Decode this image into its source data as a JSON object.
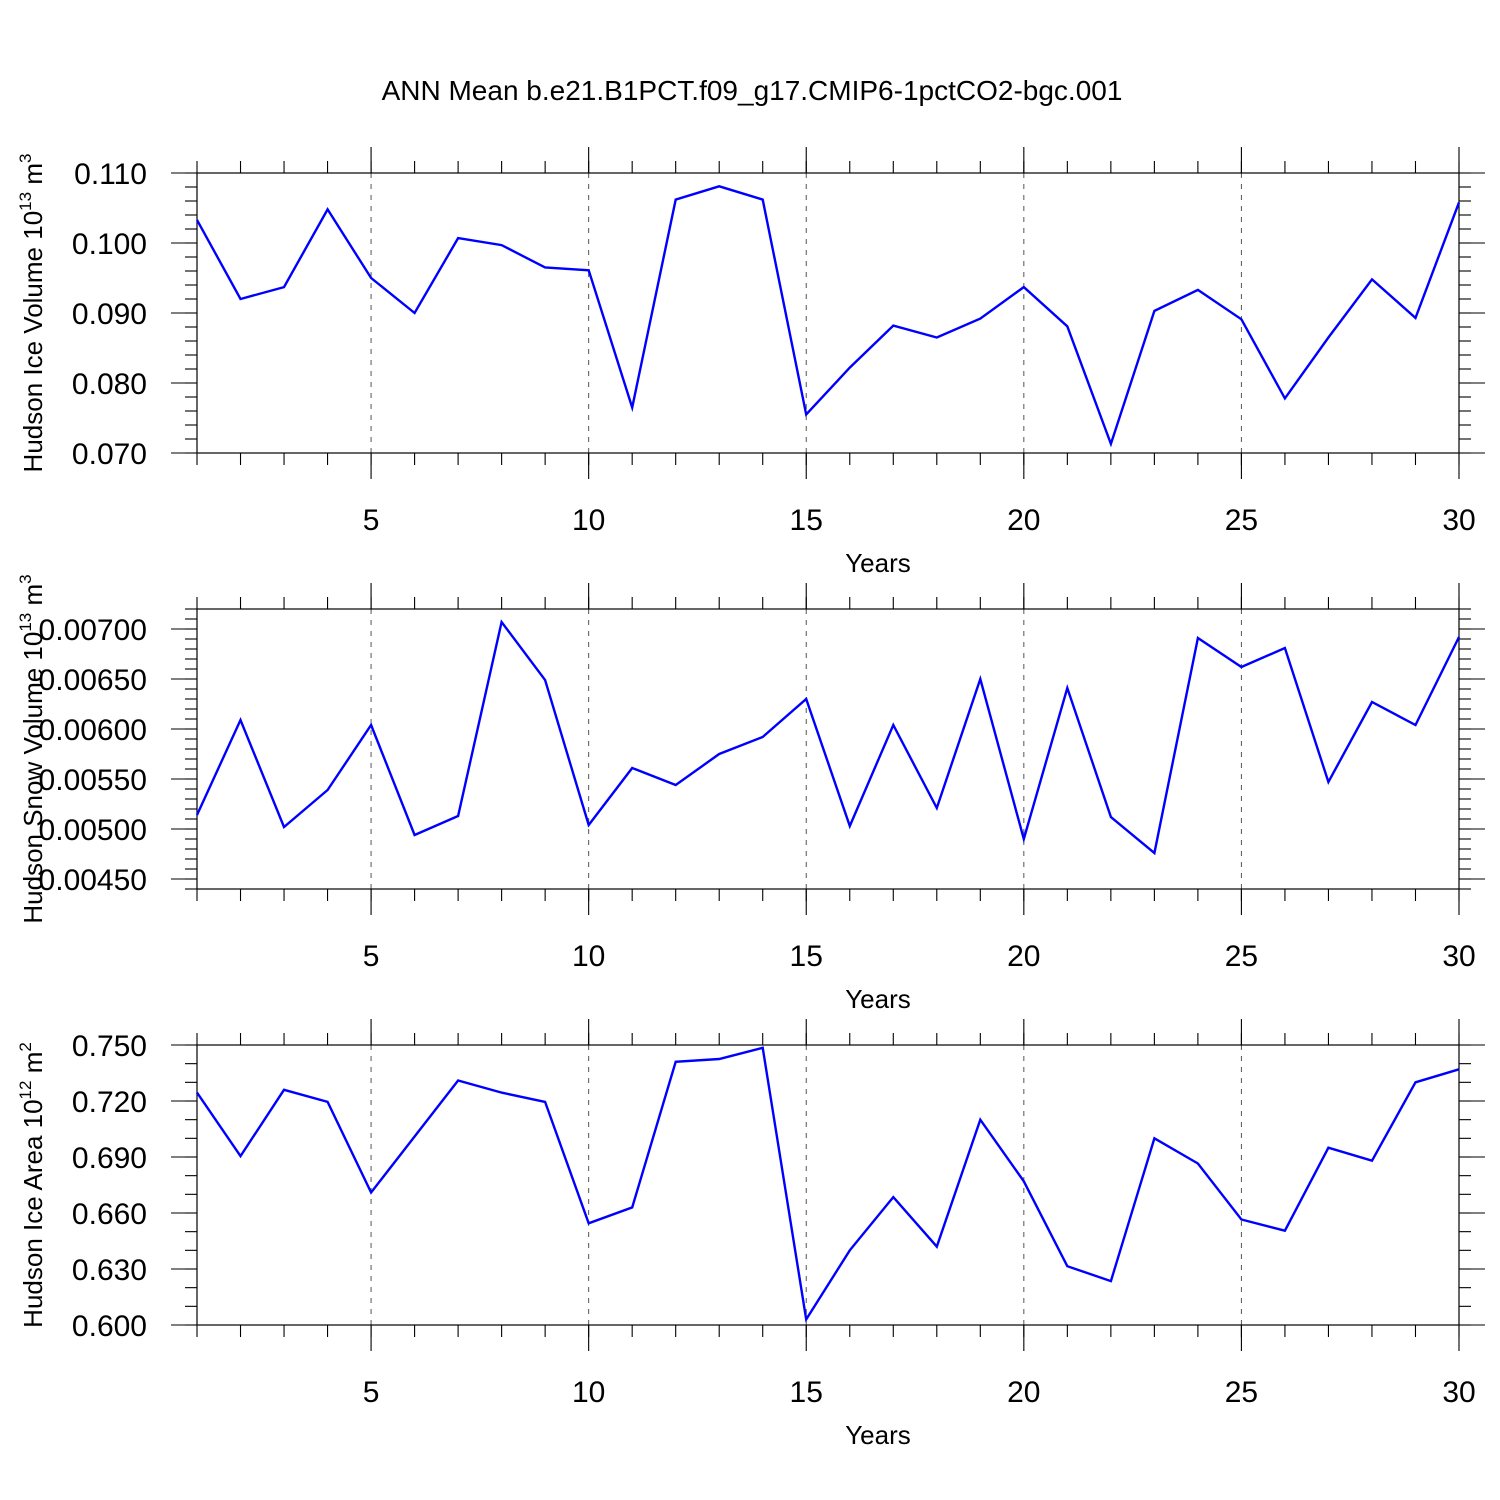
{
  "title": "ANN Mean b.e21.B1PCT.f09_g17.CMIP6-1pctCO2-bgc.001",
  "chart_data": [
    {
      "type": "line",
      "ylabel": "Hudson Ice Volume 10",
      "ylabel_sup": "13",
      "ylabel_unit": " m",
      "ylabel_unit_sup": "3",
      "xlabel": "Years",
      "xlim": [
        1,
        30
      ],
      "ylim": [
        0.07,
        0.11
      ],
      "x_ticks": [
        5,
        10,
        15,
        20,
        25,
        30
      ],
      "y_ticks": [
        "0.070",
        "0.080",
        "0.090",
        "0.100",
        "0.110"
      ],
      "y_tick_values": [
        0.07,
        0.08,
        0.09,
        0.1,
        0.11
      ],
      "y_minor_step": 0.002,
      "grid": "vertical dashed at major x ticks",
      "x": [
        1,
        2,
        3,
        4,
        5,
        6,
        7,
        8,
        9,
        10,
        11,
        12,
        13,
        14,
        15,
        16,
        17,
        18,
        19,
        20,
        21,
        22,
        23,
        24,
        25,
        26,
        27,
        28,
        29,
        30
      ],
      "values": [
        0.1033,
        0.092,
        0.0937,
        0.1048,
        0.095,
        0.09,
        0.1007,
        0.0997,
        0.0965,
        0.0961,
        0.0765,
        0.1062,
        0.1081,
        0.1062,
        0.0755,
        0.0822,
        0.0882,
        0.0865,
        0.0892,
        0.0937,
        0.0881,
        0.0713,
        0.0903,
        0.0933,
        0.0891,
        0.0778,
        0.0865,
        0.0948,
        0.0893,
        0.1058
      ],
      "color": "#0000ff"
    },
    {
      "type": "line",
      "ylabel": "Hudson Snow Volume 10",
      "ylabel_sup": "13",
      "ylabel_unit": " m",
      "ylabel_unit_sup": "3",
      "xlabel": "Years",
      "xlim": [
        1,
        30
      ],
      "ylim": [
        0.0044,
        0.0072
      ],
      "x_ticks": [
        5,
        10,
        15,
        20,
        25,
        30
      ],
      "y_ticks": [
        "0.00450",
        "0.00500",
        "0.00550",
        "0.00600",
        "0.00650",
        "0.00700"
      ],
      "y_tick_values": [
        0.0045,
        0.005,
        0.0055,
        0.006,
        0.0065,
        0.007
      ],
      "y_minor_step": 0.0001,
      "grid": "vertical dashed at major x ticks",
      "x": [
        1,
        2,
        3,
        4,
        5,
        6,
        7,
        8,
        9,
        10,
        11,
        12,
        13,
        14,
        15,
        16,
        17,
        18,
        19,
        20,
        21,
        22,
        23,
        24,
        25,
        26,
        27,
        28,
        29,
        30
      ],
      "values": [
        0.00514,
        0.00609,
        0.00502,
        0.00539,
        0.00604,
        0.00494,
        0.00513,
        0.00707,
        0.00649,
        0.00504,
        0.00561,
        0.00544,
        0.00575,
        0.00592,
        0.0063,
        0.00503,
        0.00604,
        0.00521,
        0.0065,
        0.0049,
        0.00641,
        0.00512,
        0.00476,
        0.00691,
        0.00662,
        0.00681,
        0.00547,
        0.00627,
        0.00604,
        0.00692
      ],
      "color": "#0000ff"
    },
    {
      "type": "line",
      "ylabel": "Hudson Ice Area 10",
      "ylabel_sup": "12",
      "ylabel_unit": " m",
      "ylabel_unit_sup": "2",
      "xlabel": "Years",
      "xlim": [
        1,
        30
      ],
      "ylim": [
        0.6,
        0.75
      ],
      "x_ticks": [
        5,
        10,
        15,
        20,
        25,
        30
      ],
      "y_ticks": [
        "0.600",
        "0.630",
        "0.660",
        "0.690",
        "0.720",
        "0.750"
      ],
      "y_tick_values": [
        0.6,
        0.63,
        0.66,
        0.69,
        0.72,
        0.75
      ],
      "y_minor_step": 0.01,
      "grid": "vertical dashed at major x ticks",
      "x": [
        1,
        2,
        3,
        4,
        5,
        6,
        7,
        8,
        9,
        10,
        11,
        12,
        13,
        14,
        15,
        16,
        17,
        18,
        19,
        20,
        21,
        22,
        23,
        24,
        25,
        26,
        27,
        28,
        29,
        30
      ],
      "values": [
        0.7245,
        0.6905,
        0.726,
        0.7195,
        0.671,
        0.701,
        0.731,
        0.7245,
        0.7195,
        0.6545,
        0.663,
        0.741,
        0.7425,
        0.7485,
        0.603,
        0.64,
        0.6685,
        0.642,
        0.71,
        0.677,
        0.6315,
        0.6235,
        0.7,
        0.6865,
        0.6565,
        0.6505,
        0.695,
        0.688,
        0.73,
        0.737
      ],
      "color": "#0000ff"
    }
  ]
}
